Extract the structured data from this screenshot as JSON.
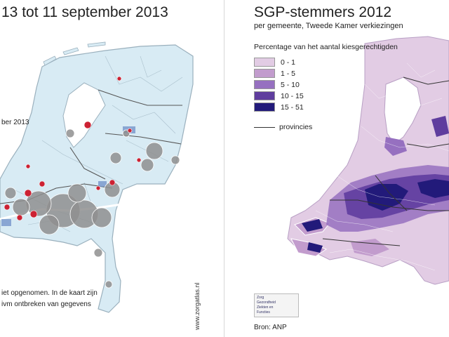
{
  "left": {
    "title": "13 tot 11 september 2013",
    "date_label": "ber 2013",
    "note_line1": "iet opgenomen. In de kaart zijn",
    "note_line2": "ivm ontbreken van gegevens",
    "vertical_url": "www.zorgatlas.nl",
    "colors": {
      "land": "#d8ebf4",
      "border": "#9ab0bd",
      "water": "#ffffff",
      "grey_marker": "#8f8f8f",
      "red_marker": "#cc2233",
      "blue_highlight": "#6f8fc8"
    }
  },
  "right": {
    "title": "SGP-stemmers 2012",
    "subtitle": "per gemeente, Tweede Kamer verkiezingen",
    "legend_title": "Percentage van het aantal kiesgerechtigden",
    "legend": [
      {
        "label": "0 -  1",
        "color": "#e2cce4"
      },
      {
        "label": "1 -  5",
        "color": "#c29ccd"
      },
      {
        "label": "5 - 10",
        "color": "#9670c0"
      },
      {
        "label": "10 - 15",
        "color": "#5f3d9e"
      },
      {
        "label": "15 - 51",
        "color": "#221a7a"
      }
    ],
    "provinces_label": "provincies",
    "source": "Bron: ANP",
    "inset_lines": [
      "Zorg",
      "Gezondheid",
      "Ziekten en",
      "Functies"
    ]
  }
}
